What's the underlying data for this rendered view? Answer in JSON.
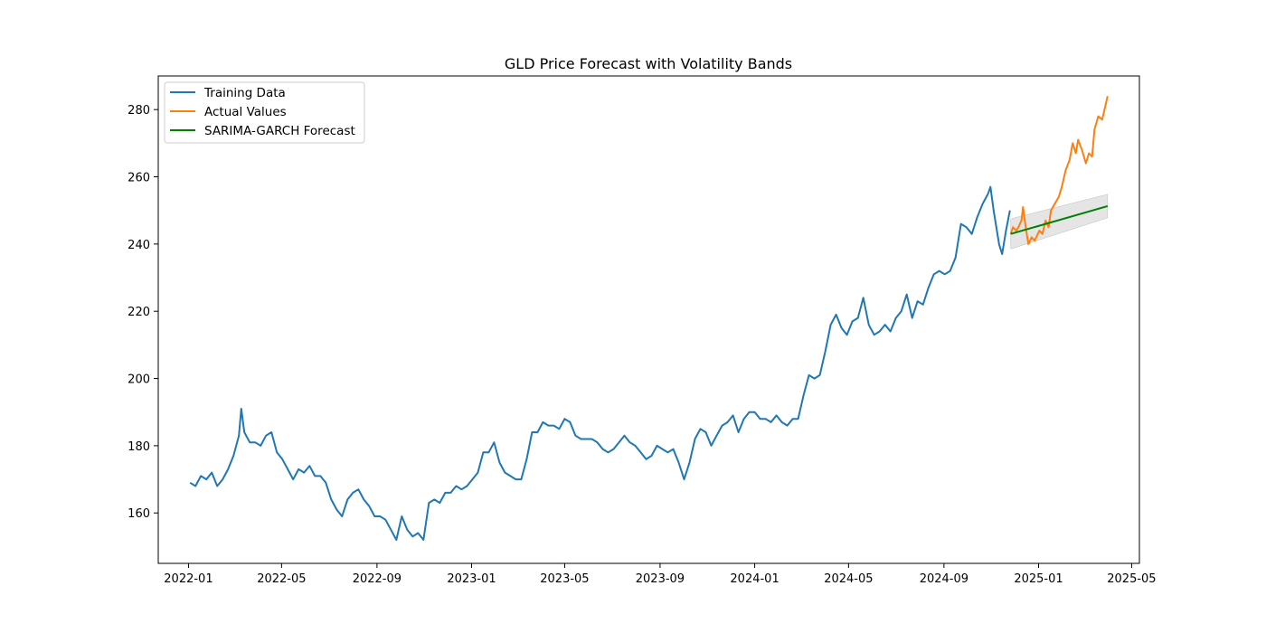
{
  "chart_data": {
    "type": "line",
    "title": "GLD Price Forecast with Volatility Bands",
    "xlabel": "",
    "ylabel": "",
    "x_axis": {
      "type": "date",
      "range": [
        "2021-11-23",
        "2025-05-11"
      ],
      "tick_labels": [
        "2022-01",
        "2022-05",
        "2022-09",
        "2023-01",
        "2023-05",
        "2023-09",
        "2024-01",
        "2024-05",
        "2024-09",
        "2025-01",
        "2025-05"
      ]
    },
    "y_axis": {
      "range": [
        145,
        290
      ],
      "ticks": [
        160,
        180,
        200,
        220,
        240,
        260,
        280
      ]
    },
    "grid": false,
    "legend": {
      "placement": "top-left",
      "entries": [
        "Training Data",
        "Actual Values",
        "SARIMA-GARCH Forecast"
      ]
    },
    "colors": {
      "training": "#1f77b4",
      "actual": "#ff7f0e",
      "forecast": "#008000",
      "band": "#d3d3d3"
    },
    "series": [
      {
        "name": "Training Data",
        "points": [
          [
            "2022-01-03",
            169
          ],
          [
            "2022-01-10",
            168
          ],
          [
            "2022-01-17",
            171
          ],
          [
            "2022-01-24",
            170
          ],
          [
            "2022-01-31",
            172
          ],
          [
            "2022-02-07",
            168
          ],
          [
            "2022-02-14",
            170
          ],
          [
            "2022-02-21",
            173
          ],
          [
            "2022-02-28",
            177
          ],
          [
            "2022-03-07",
            183
          ],
          [
            "2022-03-10",
            191
          ],
          [
            "2022-03-14",
            184
          ],
          [
            "2022-03-21",
            181
          ],
          [
            "2022-03-28",
            181
          ],
          [
            "2022-04-04",
            180
          ],
          [
            "2022-04-11",
            183
          ],
          [
            "2022-04-18",
            184
          ],
          [
            "2022-04-25",
            178
          ],
          [
            "2022-05-02",
            176
          ],
          [
            "2022-05-09",
            173
          ],
          [
            "2022-05-16",
            170
          ],
          [
            "2022-05-23",
            173
          ],
          [
            "2022-05-30",
            172
          ],
          [
            "2022-06-06",
            174
          ],
          [
            "2022-06-13",
            171
          ],
          [
            "2022-06-20",
            171
          ],
          [
            "2022-06-27",
            169
          ],
          [
            "2022-07-04",
            164
          ],
          [
            "2022-07-11",
            161
          ],
          [
            "2022-07-18",
            159
          ],
          [
            "2022-07-25",
            164
          ],
          [
            "2022-08-01",
            166
          ],
          [
            "2022-08-08",
            167
          ],
          [
            "2022-08-15",
            164
          ],
          [
            "2022-08-22",
            162
          ],
          [
            "2022-08-29",
            159
          ],
          [
            "2022-09-05",
            159
          ],
          [
            "2022-09-12",
            158
          ],
          [
            "2022-09-19",
            155
          ],
          [
            "2022-09-26",
            152
          ],
          [
            "2022-10-03",
            159
          ],
          [
            "2022-10-10",
            155
          ],
          [
            "2022-10-17",
            153
          ],
          [
            "2022-10-24",
            154
          ],
          [
            "2022-10-31",
            152
          ],
          [
            "2022-11-07",
            163
          ],
          [
            "2022-11-14",
            164
          ],
          [
            "2022-11-21",
            163
          ],
          [
            "2022-11-28",
            166
          ],
          [
            "2022-12-05",
            166
          ],
          [
            "2022-12-12",
            168
          ],
          [
            "2022-12-19",
            167
          ],
          [
            "2022-12-26",
            168
          ],
          [
            "2023-01-02",
            170
          ],
          [
            "2023-01-09",
            172
          ],
          [
            "2023-01-16",
            178
          ],
          [
            "2023-01-23",
            178
          ],
          [
            "2023-01-30",
            181
          ],
          [
            "2023-02-06",
            175
          ],
          [
            "2023-02-13",
            172
          ],
          [
            "2023-02-20",
            171
          ],
          [
            "2023-02-27",
            170
          ],
          [
            "2023-03-06",
            170
          ],
          [
            "2023-03-13",
            176
          ],
          [
            "2023-03-20",
            184
          ],
          [
            "2023-03-27",
            184
          ],
          [
            "2023-04-03",
            187
          ],
          [
            "2023-04-10",
            186
          ],
          [
            "2023-04-17",
            186
          ],
          [
            "2023-04-24",
            185
          ],
          [
            "2023-05-01",
            188
          ],
          [
            "2023-05-08",
            187
          ],
          [
            "2023-05-15",
            183
          ],
          [
            "2023-05-22",
            182
          ],
          [
            "2023-05-29",
            182
          ],
          [
            "2023-06-05",
            182
          ],
          [
            "2023-06-12",
            181
          ],
          [
            "2023-06-19",
            179
          ],
          [
            "2023-06-26",
            178
          ],
          [
            "2023-07-03",
            179
          ],
          [
            "2023-07-10",
            181
          ],
          [
            "2023-07-17",
            183
          ],
          [
            "2023-07-24",
            181
          ],
          [
            "2023-07-31",
            180
          ],
          [
            "2023-08-07",
            178
          ],
          [
            "2023-08-14",
            176
          ],
          [
            "2023-08-21",
            177
          ],
          [
            "2023-08-28",
            180
          ],
          [
            "2023-09-04",
            179
          ],
          [
            "2023-09-11",
            178
          ],
          [
            "2023-09-18",
            179
          ],
          [
            "2023-09-25",
            175
          ],
          [
            "2023-10-02",
            170
          ],
          [
            "2023-10-09",
            175
          ],
          [
            "2023-10-16",
            182
          ],
          [
            "2023-10-23",
            185
          ],
          [
            "2023-10-30",
            184
          ],
          [
            "2023-11-06",
            180
          ],
          [
            "2023-11-13",
            183
          ],
          [
            "2023-11-20",
            186
          ],
          [
            "2023-11-27",
            187
          ],
          [
            "2023-12-04",
            189
          ],
          [
            "2023-12-11",
            184
          ],
          [
            "2023-12-18",
            188
          ],
          [
            "2023-12-25",
            190
          ],
          [
            "2024-01-01",
            190
          ],
          [
            "2024-01-08",
            188
          ],
          [
            "2024-01-15",
            188
          ],
          [
            "2024-01-22",
            187
          ],
          [
            "2024-01-29",
            189
          ],
          [
            "2024-02-05",
            187
          ],
          [
            "2024-02-12",
            186
          ],
          [
            "2024-02-19",
            188
          ],
          [
            "2024-02-26",
            188
          ],
          [
            "2024-03-04",
            195
          ],
          [
            "2024-03-11",
            201
          ],
          [
            "2024-03-18",
            200
          ],
          [
            "2024-03-25",
            201
          ],
          [
            "2024-04-01",
            208
          ],
          [
            "2024-04-08",
            216
          ],
          [
            "2024-04-15",
            219
          ],
          [
            "2024-04-22",
            215
          ],
          [
            "2024-04-29",
            213
          ],
          [
            "2024-05-06",
            217
          ],
          [
            "2024-05-13",
            218
          ],
          [
            "2024-05-20",
            224
          ],
          [
            "2024-05-27",
            216
          ],
          [
            "2024-06-03",
            213
          ],
          [
            "2024-06-10",
            214
          ],
          [
            "2024-06-17",
            216
          ],
          [
            "2024-06-24",
            214
          ],
          [
            "2024-07-01",
            218
          ],
          [
            "2024-07-08",
            220
          ],
          [
            "2024-07-15",
            225
          ],
          [
            "2024-07-22",
            218
          ],
          [
            "2024-07-29",
            223
          ],
          [
            "2024-08-05",
            222
          ],
          [
            "2024-08-12",
            227
          ],
          [
            "2024-08-19",
            231
          ],
          [
            "2024-08-26",
            232
          ],
          [
            "2024-09-02",
            231
          ],
          [
            "2024-09-09",
            232
          ],
          [
            "2024-09-16",
            236
          ],
          [
            "2024-09-23",
            246
          ],
          [
            "2024-09-30",
            245
          ],
          [
            "2024-10-07",
            243
          ],
          [
            "2024-10-14",
            248
          ],
          [
            "2024-10-21",
            252
          ],
          [
            "2024-10-28",
            255
          ],
          [
            "2024-10-31",
            257
          ],
          [
            "2024-11-04",
            250
          ],
          [
            "2024-11-11",
            240
          ],
          [
            "2024-11-15",
            237
          ],
          [
            "2024-11-20",
            244
          ],
          [
            "2024-11-25",
            250
          ]
        ]
      },
      {
        "name": "Actual Values",
        "points": [
          [
            "2024-11-26",
            243
          ],
          [
            "2024-11-29",
            245
          ],
          [
            "2024-12-03",
            244
          ],
          [
            "2024-12-06",
            245
          ],
          [
            "2024-12-10",
            247
          ],
          [
            "2024-12-12",
            251
          ],
          [
            "2024-12-16",
            244
          ],
          [
            "2024-12-19",
            240
          ],
          [
            "2024-12-23",
            242
          ],
          [
            "2024-12-27",
            241
          ],
          [
            "2025-01-02",
            244
          ],
          [
            "2025-01-06",
            243
          ],
          [
            "2025-01-10",
            247
          ],
          [
            "2025-01-14",
            245
          ],
          [
            "2025-01-17",
            250
          ],
          [
            "2025-01-22",
            252
          ],
          [
            "2025-01-27",
            254
          ],
          [
            "2025-01-31",
            257
          ],
          [
            "2025-02-05",
            262
          ],
          [
            "2025-02-10",
            265
          ],
          [
            "2025-02-14",
            270
          ],
          [
            "2025-02-18",
            267
          ],
          [
            "2025-02-21",
            271
          ],
          [
            "2025-02-26",
            268
          ],
          [
            "2025-03-03",
            264
          ],
          [
            "2025-03-07",
            267
          ],
          [
            "2025-03-11",
            266
          ],
          [
            "2025-03-14",
            274
          ],
          [
            "2025-03-19",
            278
          ],
          [
            "2025-03-24",
            277
          ],
          [
            "2025-03-28",
            281
          ],
          [
            "2025-03-31",
            284
          ]
        ]
      },
      {
        "name": "SARIMA-GARCH Forecast",
        "points": [
          [
            "2024-11-26",
            243.0
          ],
          [
            "2025-03-31",
            251.3
          ]
        ],
        "band": {
          "lower": [
            [
              "2024-11-26",
              238.5
            ],
            [
              "2025-03-31",
              247.8
            ]
          ],
          "upper": [
            [
              "2024-11-26",
              247.5
            ],
            [
              "2025-03-31",
              254.8
            ]
          ]
        }
      }
    ]
  }
}
